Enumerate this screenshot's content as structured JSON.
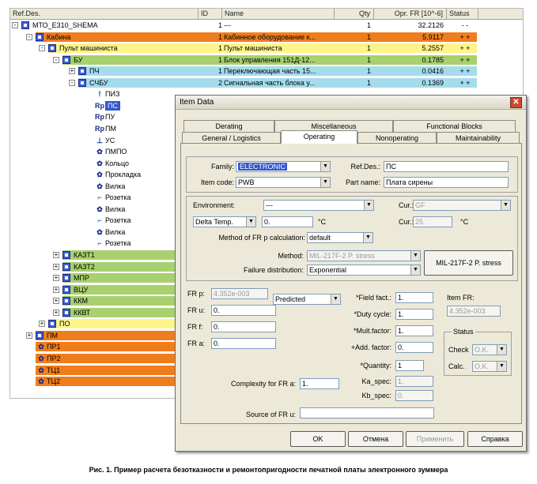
{
  "columns": {
    "ref": "Ref.Des.",
    "id": "ID",
    "name": "Name",
    "qty": "Qty",
    "fr": "Opr. FR [10^-6]",
    "status": "Status"
  },
  "rows": [
    {
      "ref": "МТО_E310_SHEMA",
      "id": "1",
      "name": "---",
      "qty": "1",
      "fr": "32.2126",
      "st": "- -",
      "bg": "#ffffff",
      "icon": "node",
      "exp": "-",
      "lv": 0
    },
    {
      "ref": "Кабина",
      "id": "1",
      "name": "Кабинное оборудование к...",
      "qty": "1",
      "fr": "5.9117",
      "st": "+ +",
      "bg": "#f07d1c",
      "icon": "node",
      "exp": "-",
      "lv": 1
    },
    {
      "ref": "Пульт машиниста",
      "id": "1",
      "name": "Пульт машиниста",
      "qty": "1",
      "fr": "5.2557",
      "st": "+ +",
      "bg": "#fff48a",
      "icon": "node",
      "exp": "-",
      "lv": 2
    },
    {
      "ref": "БУ",
      "id": "1",
      "name": "Блок управления 151Д-12...",
      "qty": "1",
      "fr": "0.1785",
      "st": "+ +",
      "bg": "#a8d06e",
      "icon": "node",
      "exp": "-",
      "lv": 3
    },
    {
      "ref": "ПЧ",
      "id": "1",
      "name": "Переключающая часть 15...",
      "qty": "1",
      "fr": "0.0416",
      "st": "+ +",
      "bg": "#a4dcec",
      "icon": "node",
      "exp": "+",
      "lv": 4
    },
    {
      "ref": "СЧБУ",
      "id": "2",
      "name": "Сигнальная часть блока у...",
      "qty": "1",
      "fr": "0.1369",
      "st": "+ +",
      "bg": "#a4dcec",
      "icon": "node",
      "exp": "-",
      "lv": 4
    },
    {
      "ref": "ПИЗ",
      "icon": "!",
      "lv": 5
    },
    {
      "ref": "ПС",
      "icon": "Rp",
      "lv": 5,
      "sel": true
    },
    {
      "ref": "ПУ",
      "icon": "Rp",
      "lv": 5
    },
    {
      "ref": "ПМ",
      "icon": "Rp",
      "lv": 5
    },
    {
      "ref": "УС",
      "icon": "⊥",
      "lv": 5
    },
    {
      "ref": "ПМПО",
      "icon": "✿",
      "lv": 5
    },
    {
      "ref": "Кольцо",
      "icon": "✿",
      "lv": 5
    },
    {
      "ref": "Прокладка",
      "icon": "✿",
      "lv": 5
    },
    {
      "ref": "Вилка",
      "icon": "✿",
      "lv": 5
    },
    {
      "ref": "Розетка",
      "icon": "⌐",
      "lv": 5
    },
    {
      "ref": "Вилка",
      "icon": "✿",
      "lv": 5
    },
    {
      "ref": "Розетка",
      "icon": "⌐",
      "lv": 5
    },
    {
      "ref": "Вилка",
      "icon": "✿",
      "lv": 5
    },
    {
      "ref": "Розетка",
      "icon": "⌐",
      "lv": 5
    },
    {
      "ref": "КАЗТ1",
      "bg": "#a8d06e",
      "icon": "node",
      "exp": "+",
      "lv": 3
    },
    {
      "ref": "КАЗТ2",
      "bg": "#a8d06e",
      "icon": "node",
      "exp": "+",
      "lv": 3
    },
    {
      "ref": "МПР",
      "bg": "#a8d06e",
      "icon": "node",
      "exp": "+",
      "lv": 3
    },
    {
      "ref": "ВЦУ",
      "bg": "#a8d06e",
      "icon": "node",
      "exp": "+",
      "lv": 3
    },
    {
      "ref": "ККМ",
      "bg": "#a8d06e",
      "icon": "node",
      "exp": "+",
      "lv": 3
    },
    {
      "ref": "ККВТ",
      "bg": "#a8d06e",
      "icon": "node",
      "exp": "+",
      "lv": 3
    },
    {
      "ref": "ПО",
      "bg": "#fff48a",
      "icon": "node",
      "exp": "+",
      "lv": 2
    },
    {
      "ref": "ПМ",
      "bg": "#f07d1c",
      "icon": "node",
      "exp": "+",
      "lv": 1
    },
    {
      "ref": "ПР1",
      "bg": "#f07d1c",
      "icon": "✿",
      "lv": 1
    },
    {
      "ref": "ПР2",
      "bg": "#f07d1c",
      "icon": "✿",
      "lv": 1
    },
    {
      "ref": "ТЦ1",
      "bg": "#f07d1c",
      "icon": "✿",
      "lv": 1
    },
    {
      "ref": "ТЦ2",
      "bg": "#f07d1c",
      "icon": "✿",
      "lv": 1
    }
  ],
  "dialog": {
    "title": "Item Data",
    "tabs_top": [
      "Derating",
      "Miscellaneous",
      "Functional Blocks"
    ],
    "tabs_bottom": [
      "General / Logistics",
      "Operating",
      "Nonoperating",
      "Maintainability"
    ],
    "family_label": "Family:",
    "family_value": "ELECTRONIC",
    "refdes_label": "Ref.Des.:",
    "refdes_value": "ПС",
    "itemcode_label": "Item code:",
    "itemcode_value": "PWB",
    "partname_label": "Part name:",
    "partname_value": "Плата сирены",
    "env_label": "Environment:",
    "env_value": "---",
    "cur_label": "Cur.:",
    "cur1_value": "GF",
    "delta_value": "Delta Temp.",
    "delta_num": "0.",
    "unit_c": "°C",
    "cur2_value": "25.",
    "method_fr_label": "Method of FR p calculation:",
    "method_fr_value": "default",
    "method_label": "Method:",
    "method_value": "MIL-217F-2 P. stress",
    "failure_label": "Failure distribution:",
    "failure_value": "Exponential",
    "mil_button": "MIL-217F-2 P. stress",
    "frp_label": "FR p:",
    "frp_value": "4.352e-003",
    "predicted": "Predicted",
    "fru_label": "FR u:",
    "fru_value": "0.",
    "frf_label": "FR f:",
    "frf_value": "0.",
    "fra_label": "FR a:",
    "fra_value": "0.",
    "field_label": "*Field fact.:",
    "field_value": "1.",
    "duty_label": "*Duty cycle:",
    "duty_value": "1.",
    "mult_label": "*Mult.factor:",
    "mult_value": "1.",
    "add_label": "+Add. factor:",
    "add_value": "0.",
    "qty_label": "*Quantity:",
    "qty_value": "1",
    "ka_label": "Ka_spec:",
    "ka_value": "1.",
    "kb_label": "Kb_spec:",
    "kb_value": "0.",
    "itemfr_label": "Item FR:",
    "itemfr_value": "4.352e-003",
    "status_label": "Status",
    "check_label": "Check",
    "check_value": "O.K.",
    "calc_label": "Calc.",
    "calc_value": "O.K.",
    "complexity_label": "Complexity for FR a:",
    "complexity_value": "1.",
    "source_label": "Source of FR u:",
    "source_value": "",
    "ok": "OK",
    "cancel": "Отмена",
    "apply": "Применить",
    "help": "Справка"
  },
  "caption": "Рис. 1. Пример расчета безотказности и ремонтопригодности печатной платы электронного зуммера"
}
